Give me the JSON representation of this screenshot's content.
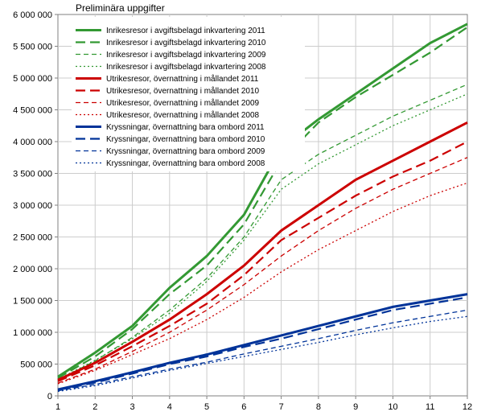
{
  "title": "Preliminära uppgifter",
  "ylim": [
    0,
    6000000
  ],
  "ytick_step": 500000,
  "xlim": [
    1,
    12
  ],
  "xtick_step": 1,
  "background_color": "#ffffff",
  "grid_color": "#cccccc",
  "axis_color": "#808080",
  "series": [
    {
      "label": "Inrikesresor i avgiftsbelagd inkvartering 2011",
      "color": "#339933",
      "dash": "",
      "width": 3,
      "y": [
        300000,
        680000,
        1100000,
        1700000,
        2200000,
        2850000,
        3900000,
        4350000,
        4750000,
        5150000,
        5550000,
        5850000
      ]
    },
    {
      "label": "Inrikesresor i avgiftsbelagd inkvartering 2010",
      "color": "#339933",
      "dash": "12,6",
      "width": 2.2,
      "y": [
        280000,
        620000,
        1050000,
        1600000,
        2050000,
        2700000,
        3700000,
        4300000,
        4700000,
        5050000,
        5400000,
        5800000
      ]
    },
    {
      "label": "Inrikesresor i avgiftsbelagd inkvartering 2009",
      "color": "#339933",
      "dash": "6,4",
      "width": 1.3,
      "y": [
        250000,
        550000,
        920000,
        1350000,
        1850000,
        2500000,
        3400000,
        3800000,
        4100000,
        4400000,
        4650000,
        4900000
      ]
    },
    {
      "label": "Inrikesresor i avgiftsbelagd inkvartering 2008",
      "color": "#339933",
      "dash": "2,3",
      "width": 1.3,
      "y": [
        260000,
        560000,
        900000,
        1300000,
        1800000,
        2450000,
        3250000,
        3650000,
        3950000,
        4250000,
        4500000,
        4750000
      ]
    },
    {
      "label": "Utrikesresor, övernattning i mållandet 2011",
      "color": "#cc0000",
      "dash": "",
      "width": 3,
      "y": [
        250000,
        520000,
        850000,
        1200000,
        1600000,
        2050000,
        2600000,
        3000000,
        3400000,
        3700000,
        4000000,
        4300000
      ]
    },
    {
      "label": "Utrikesresor, övernattning i mållandet 2010",
      "color": "#cc0000",
      "dash": "12,6",
      "width": 2.2,
      "y": [
        230000,
        480000,
        780000,
        1100000,
        1450000,
        1900000,
        2450000,
        2800000,
        3150000,
        3450000,
        3700000,
        4000000
      ]
    },
    {
      "label": "Utrikesresor, övernattning i mållandet 2009",
      "color": "#cc0000",
      "dash": "6,4",
      "width": 1.3,
      "y": [
        200000,
        420000,
        700000,
        1000000,
        1350000,
        1750000,
        2200000,
        2600000,
        2950000,
        3250000,
        3500000,
        3750000
      ]
    },
    {
      "label": "Utrikesresor, övernattning i mållandet 2008",
      "color": "#cc0000",
      "dash": "2,3",
      "width": 1.3,
      "y": [
        190000,
        400000,
        650000,
        900000,
        1200000,
        1550000,
        1950000,
        2300000,
        2600000,
        2900000,
        3150000,
        3350000
      ]
    },
    {
      "label": "Kryssningar, övernattning bara ombord 2011",
      "color": "#003399",
      "dash": "",
      "width": 3,
      "y": [
        100000,
        230000,
        370000,
        520000,
        650000,
        800000,
        950000,
        1100000,
        1250000,
        1400000,
        1500000,
        1600000
      ]
    },
    {
      "label": "Kryssningar, övernattning bara ombord 2010",
      "color": "#003399",
      "dash": "12,6",
      "width": 2.2,
      "y": [
        90000,
        210000,
        350000,
        500000,
        620000,
        770000,
        900000,
        1050000,
        1200000,
        1350000,
        1450000,
        1550000
      ]
    },
    {
      "label": "Kryssningar, övernattning bara ombord 2009",
      "color": "#003399",
      "dash": "6,4",
      "width": 1.3,
      "y": [
        80000,
        180000,
        300000,
        420000,
        530000,
        660000,
        780000,
        900000,
        1030000,
        1150000,
        1250000,
        1350000
      ]
    },
    {
      "label": "Kryssningar, övernattning bara ombord 2008",
      "color": "#003399",
      "dash": "2,3",
      "width": 1.3,
      "y": [
        70000,
        160000,
        280000,
        400000,
        510000,
        620000,
        730000,
        840000,
        960000,
        1070000,
        1170000,
        1250000
      ]
    }
  ]
}
